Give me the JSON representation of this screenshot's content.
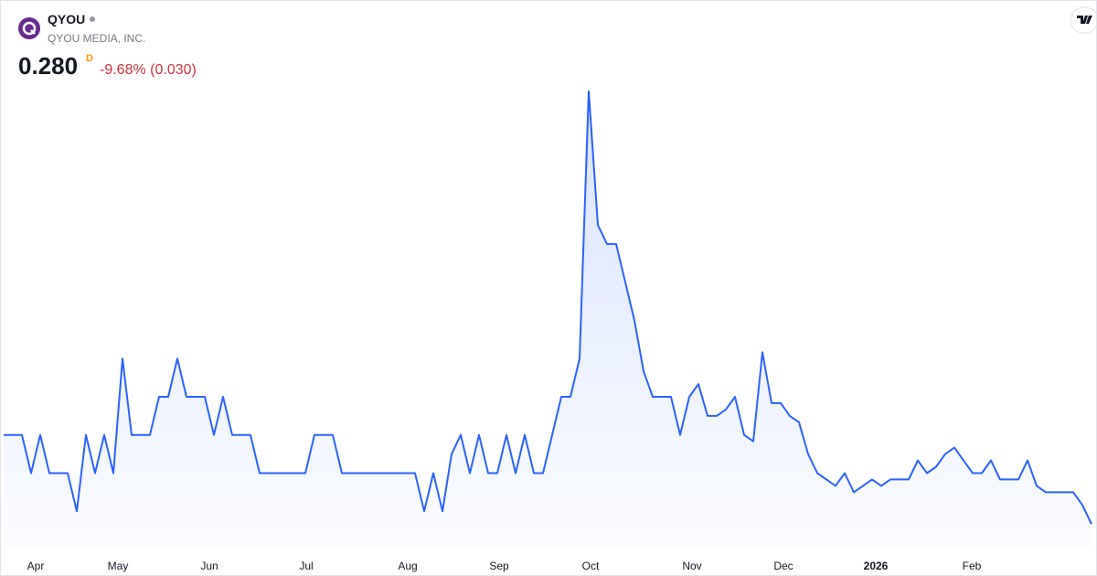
{
  "header": {
    "ticker": "QYOU",
    "company": "QYOU MEDIA, INC.",
    "price": "0.280",
    "interval": "D",
    "change": "-9.68% (0.030)"
  },
  "chart_data": {
    "type": "area",
    "color": "#2962ff",
    "values": [
      0.42,
      0.42,
      0.42,
      0.36,
      0.42,
      0.36,
      0.36,
      0.36,
      0.3,
      0.42,
      0.36,
      0.42,
      0.36,
      0.54,
      0.42,
      0.42,
      0.42,
      0.48,
      0.48,
      0.54,
      0.48,
      0.48,
      0.48,
      0.42,
      0.48,
      0.42,
      0.42,
      0.42,
      0.36,
      0.36,
      0.36,
      0.36,
      0.36,
      0.36,
      0.42,
      0.42,
      0.42,
      0.36,
      0.36,
      0.36,
      0.36,
      0.36,
      0.36,
      0.36,
      0.36,
      0.36,
      0.3,
      0.36,
      0.3,
      0.39,
      0.42,
      0.36,
      0.42,
      0.36,
      0.36,
      0.42,
      0.36,
      0.42,
      0.36,
      0.36,
      0.42,
      0.48,
      0.48,
      0.54,
      0.96,
      0.75,
      0.72,
      0.72,
      0.66,
      0.6,
      0.52,
      0.48,
      0.48,
      0.48,
      0.42,
      0.48,
      0.5,
      0.45,
      0.45,
      0.46,
      0.48,
      0.42,
      0.41,
      0.55,
      0.47,
      0.47,
      0.45,
      0.44,
      0.39,
      0.36,
      0.35,
      0.34,
      0.36,
      0.33,
      0.34,
      0.35,
      0.34,
      0.35,
      0.35,
      0.35,
      0.38,
      0.36,
      0.37,
      0.39,
      0.4,
      0.38,
      0.36,
      0.36,
      0.38,
      0.35,
      0.35,
      0.35,
      0.38,
      0.34,
      0.33,
      0.33,
      0.33,
      0.33,
      0.31,
      0.28
    ],
    "xlim": [
      0,
      119
    ],
    "ylim": [
      0.24,
      0.98
    ],
    "xticks": [
      {
        "value": 3.5,
        "label": "Apr"
      },
      {
        "value": 12.5,
        "label": "May"
      },
      {
        "value": 22.5,
        "label": "Jun"
      },
      {
        "value": 33.1,
        "label": "Jul"
      },
      {
        "value": 44.2,
        "label": "Aug"
      },
      {
        "value": 54.2,
        "label": "Sep"
      },
      {
        "value": 64.2,
        "label": "Oct"
      },
      {
        "value": 75.3,
        "label": "Nov"
      },
      {
        "value": 85.3,
        "label": "Dec"
      },
      {
        "value": 95.4,
        "label": "2026"
      },
      {
        "value": 105.9,
        "label": "Feb"
      }
    ]
  }
}
